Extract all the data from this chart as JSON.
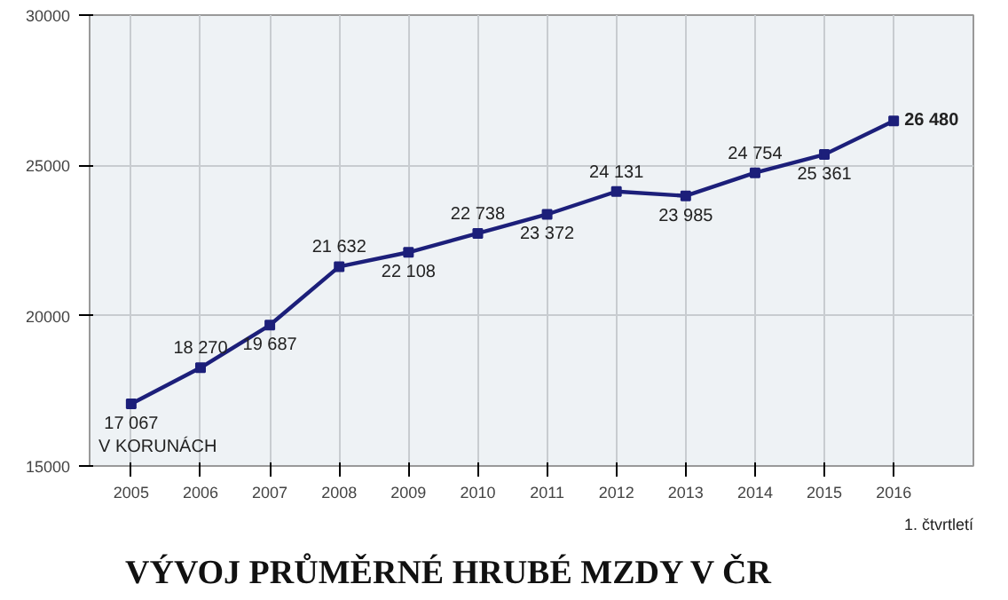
{
  "chart_data": {
    "type": "line",
    "title": "VÝVOJ PRŮMĚRNÉ HRUBÉ MZDY V ČR",
    "categories": [
      "2005",
      "2006",
      "2007",
      "2008",
      "2009",
      "2010",
      "2011",
      "2012",
      "2013",
      "2014",
      "2015",
      "2016"
    ],
    "series": [
      {
        "color": "#1c1f7a",
        "values": [
          17067,
          18270,
          19687,
          21632,
          22108,
          22738,
          23372,
          24131,
          23985,
          24754,
          25361,
          26480
        ],
        "value_labels": [
          "17 067",
          "18 270",
          "19 687",
          "21 632",
          "22 108",
          "22 738",
          "23 372",
          "24 131",
          "23 985",
          "24 754",
          "25 361",
          "26 480"
        ]
      }
    ],
    "ylim": [
      15000,
      30000
    ],
    "yticks": [
      15000,
      20000,
      25000,
      30000
    ],
    "annotations": [
      "V KORUNÁCH",
      "1. čtvrtletí"
    ],
    "grid": true,
    "marker": "square",
    "line_style": "solid"
  }
}
